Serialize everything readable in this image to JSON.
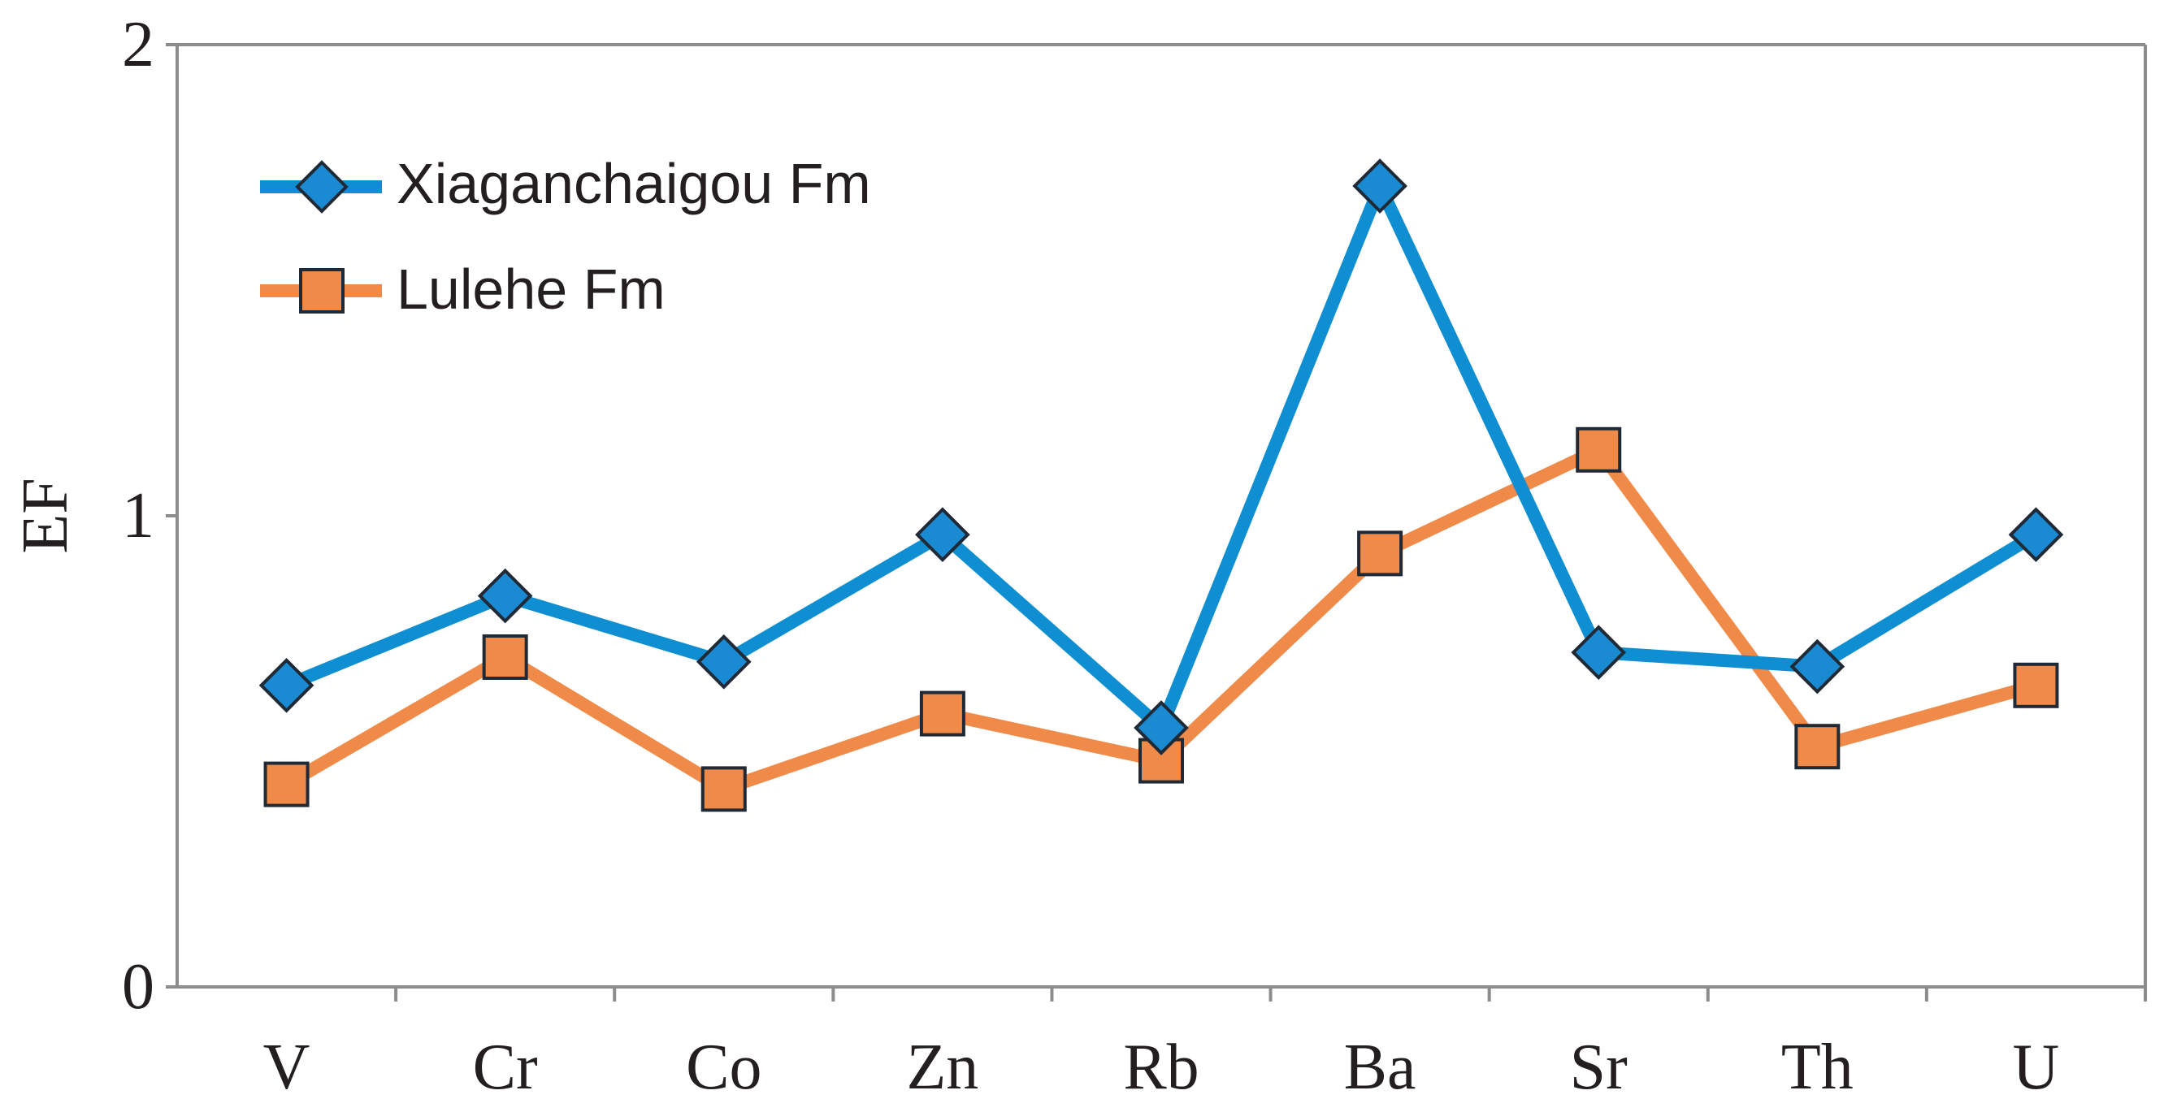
{
  "chart_data": {
    "type": "line",
    "title": "",
    "xlabel": "",
    "ylabel": "EF",
    "categories": [
      "V",
      "Cr",
      "Co",
      "Zn",
      "Rb",
      "Ba",
      "Sr",
      "Th",
      "U"
    ],
    "yticks": [
      "0",
      "1",
      "2"
    ],
    "ylim": [
      0,
      2
    ],
    "grid": false,
    "legend_position": "top-left",
    "series": [
      {
        "name": "Xiaganchaigou Fm",
        "values": [
          0.64,
          0.83,
          0.69,
          0.96,
          0.55,
          1.7,
          0.71,
          0.68,
          0.96
        ],
        "color": "#0f8ed2",
        "marker": "diamond",
        "marker_color": "#1a8bd3"
      },
      {
        "name": "Lulehe Fm",
        "values": [
          0.43,
          0.7,
          0.42,
          0.58,
          0.48,
          0.92,
          1.14,
          0.51,
          0.64
        ],
        "color": "#f08a48",
        "marker": "square",
        "marker_color": "#f08a48"
      }
    ]
  }
}
